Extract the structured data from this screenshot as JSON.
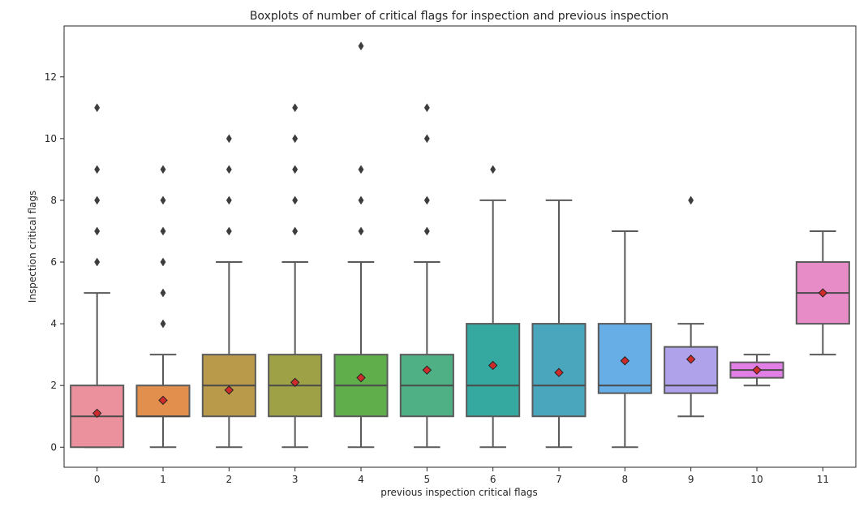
{
  "chart_data": {
    "type": "boxplot",
    "title": "Boxplots of number of critical flags for inspection and previous inspection",
    "xlabel": "previous inspection critical flags",
    "ylabel": "Inspection critical flags",
    "ylim": [
      -0.65,
      13.65
    ],
    "yticks": [
      0,
      2,
      4,
      6,
      8,
      10,
      12
    ],
    "grid": false,
    "categories": [
      "0",
      "1",
      "2",
      "3",
      "4",
      "5",
      "6",
      "7",
      "8",
      "9",
      "10",
      "11"
    ],
    "colors": [
      "#eb919d",
      "#e28e4d",
      "#b89a4a",
      "#9ea146",
      "#5fae4b",
      "#4fb085",
      "#35a99f",
      "#49a6bd",
      "#67aee6",
      "#b0a1eb",
      "#e27fe6",
      "#e88cc8"
    ],
    "median_line_color": "#4a4a4a",
    "mean_marker_color": "#d02b2b",
    "boxes": [
      {
        "category": "0",
        "q1": 0,
        "median": 1,
        "q3": 2,
        "whisker_low": 0,
        "whisker_high": 5,
        "mean": 1.1,
        "outliers": [
          6,
          7,
          8,
          9,
          11
        ]
      },
      {
        "category": "1",
        "q1": 1,
        "median": 1,
        "q3": 2,
        "whisker_low": 0,
        "whisker_high": 3,
        "mean": 1.52,
        "outliers": [
          4,
          5,
          6,
          7,
          8,
          9
        ]
      },
      {
        "category": "2",
        "q1": 1,
        "median": 2,
        "q3": 3,
        "whisker_low": 0,
        "whisker_high": 6,
        "mean": 1.85,
        "outliers": [
          7,
          8,
          9,
          10
        ]
      },
      {
        "category": "3",
        "q1": 1,
        "median": 2,
        "q3": 3,
        "whisker_low": 0,
        "whisker_high": 6,
        "mean": 2.1,
        "outliers": [
          7,
          8,
          9,
          10,
          11
        ]
      },
      {
        "category": "4",
        "q1": 1,
        "median": 2,
        "q3": 3,
        "whisker_low": 0,
        "whisker_high": 6,
        "mean": 2.25,
        "outliers": [
          7,
          8,
          9,
          13
        ]
      },
      {
        "category": "5",
        "q1": 1,
        "median": 2,
        "q3": 3,
        "whisker_low": 0,
        "whisker_high": 6,
        "mean": 2.5,
        "outliers": [
          7,
          8,
          10,
          11
        ]
      },
      {
        "category": "6",
        "q1": 1,
        "median": 2,
        "q3": 4,
        "whisker_low": 0,
        "whisker_high": 8,
        "mean": 2.65,
        "outliers": [
          9
        ]
      },
      {
        "category": "7",
        "q1": 1,
        "median": 2,
        "q3": 4,
        "whisker_low": 0,
        "whisker_high": 8,
        "mean": 2.42,
        "outliers": []
      },
      {
        "category": "8",
        "q1": 1.75,
        "median": 2,
        "q3": 4,
        "whisker_low": 0,
        "whisker_high": 7,
        "mean": 2.8,
        "outliers": []
      },
      {
        "category": "9",
        "q1": 1.75,
        "median": 2,
        "q3": 3.25,
        "whisker_low": 1,
        "whisker_high": 4,
        "mean": 2.85,
        "outliers": [
          8
        ]
      },
      {
        "category": "10",
        "q1": 2.25,
        "median": 2.5,
        "q3": 2.75,
        "whisker_low": 2,
        "whisker_high": 3,
        "mean": 2.5,
        "outliers": []
      },
      {
        "category": "11",
        "q1": 4,
        "median": 5,
        "q3": 6,
        "whisker_low": 3,
        "whisker_high": 7,
        "mean": 5,
        "outliers": []
      }
    ]
  }
}
